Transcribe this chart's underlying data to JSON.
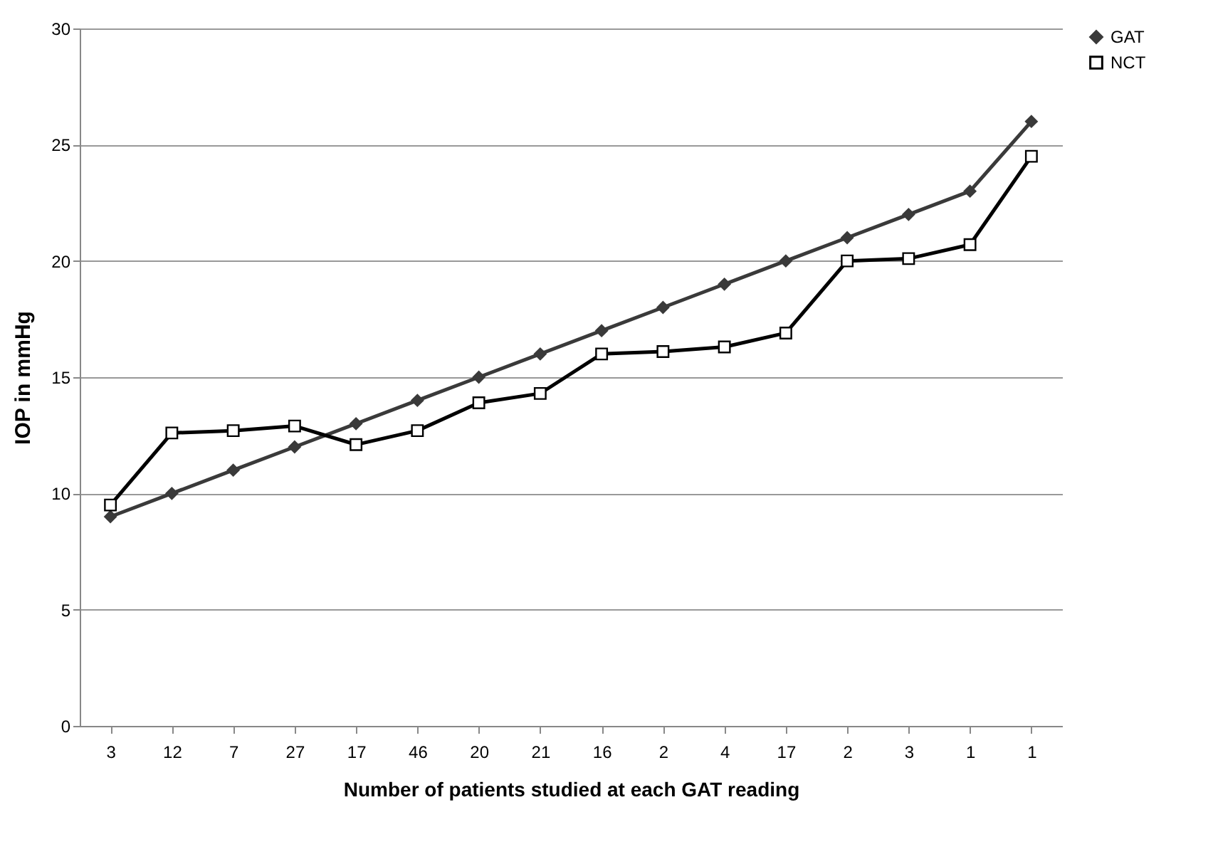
{
  "chart_data": {
    "type": "line",
    "xlabel": "Number of patients studied at each GAT reading",
    "ylabel": "IOP in mmHg",
    "categories": [
      "3",
      "12",
      "7",
      "27",
      "17",
      "46",
      "20",
      "21",
      "16",
      "2",
      "4",
      "17",
      "2",
      "3",
      "1",
      "1"
    ],
    "series": [
      {
        "name": "GAT",
        "color": "#3a3a3a",
        "marker": "diamond",
        "values": [
          9,
          10,
          11,
          12,
          13,
          14,
          15,
          16,
          17,
          18,
          19,
          20,
          21,
          22,
          23,
          26
        ]
      },
      {
        "name": "NCT",
        "color": "#000000",
        "marker": "square",
        "values": [
          9.5,
          12.6,
          12.7,
          12.9,
          12.1,
          12.7,
          13.9,
          14.3,
          16,
          16.1,
          16.3,
          16.9,
          20,
          20.1,
          20.7,
          24.5
        ]
      }
    ],
    "ylim": [
      0,
      30
    ],
    "yticks": [
      0,
      5,
      10,
      15,
      20,
      25,
      30
    ],
    "grid": "y",
    "legend": "right"
  }
}
